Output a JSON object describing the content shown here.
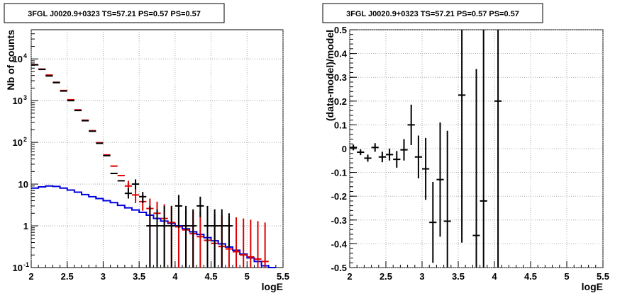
{
  "chart_data": [
    {
      "type": "line",
      "title": "3FGL J0020.9+0323 TS=57.21 PS=0.57 PS=0.57",
      "xlabel": "logE",
      "ylabel": "Nb of counts",
      "xlim": [
        2,
        5.5
      ],
      "ylim": [
        0.1,
        50000
      ],
      "yscale": "log",
      "grid": true,
      "x_ticks": [
        "2",
        "2.5",
        "3",
        "3.5",
        "4",
        "4.5",
        "5",
        "5.5"
      ],
      "y_ticks": [
        {
          "value": 0.1,
          "label": "10",
          "exp": "-1"
        },
        {
          "value": 1,
          "label": "1",
          "exp": ""
        },
        {
          "value": 10,
          "label": "10",
          "exp": ""
        },
        {
          "value": 100,
          "label": "10",
          "exp": "2"
        },
        {
          "value": 1000,
          "label": "10",
          "exp": "3"
        },
        {
          "value": 10000,
          "label": "10",
          "exp": "4"
        }
      ],
      "colors": {
        "data": "#000000",
        "model": "#dd0000",
        "background": "#0000dd"
      },
      "series": [
        {
          "kind": "errorbars",
          "color": "data",
          "x": [
            2.05,
            2.15,
            2.25,
            2.35,
            2.45,
            2.55,
            2.65,
            2.75,
            2.85,
            2.95,
            3.05,
            3.15,
            3.25,
            3.35,
            3.45,
            3.55,
            3.65,
            3.75,
            3.85,
            3.95,
            4.05,
            4.15,
            4.25,
            4.35,
            4.45,
            4.55,
            4.65,
            4.75
          ],
          "y": [
            7200,
            5600,
            3900,
            2700,
            1700,
            1000,
            580,
            330,
            185,
            95,
            48,
            18,
            12,
            6,
            10,
            5,
            1,
            1,
            1,
            1,
            3,
            1,
            1,
            3,
            1,
            1,
            1,
            1
          ],
          "lo": [
            null,
            null,
            null,
            null,
            null,
            null,
            null,
            null,
            null,
            null,
            null,
            null,
            null,
            4.5,
            7.5,
            3.5,
            0.1,
            0.1,
            0.1,
            0.1,
            0.9,
            0.1,
            0.1,
            1.6,
            0.1,
            0.1,
            0.1,
            0.3
          ],
          "hi": [
            null,
            null,
            null,
            null,
            null,
            null,
            null,
            null,
            null,
            null,
            null,
            null,
            null,
            8,
            13,
            6.5,
            3,
            2.5,
            3,
            3,
            5.5,
            3,
            2.5,
            5,
            3,
            2.5,
            2.5,
            2
          ]
        },
        {
          "kind": "errorbars",
          "color": "model",
          "x": [
            2.05,
            2.15,
            2.25,
            2.35,
            2.45,
            2.55,
            2.65,
            2.75,
            2.85,
            2.95,
            3.05,
            3.15,
            3.25,
            3.35,
            3.45,
            3.55,
            3.65,
            3.75,
            3.85,
            3.95,
            4.05,
            4.15,
            4.25,
            4.35,
            4.45,
            4.55,
            4.65,
            4.75,
            4.85,
            4.95,
            5.05,
            5.15,
            5.25
          ],
          "y": [
            7300,
            5700,
            4100,
            2750,
            1750,
            1050,
            600,
            340,
            190,
            98,
            50,
            27,
            16,
            9,
            5.5,
            3.8,
            2.6,
            2.0,
            1.5,
            1.2,
            0.95,
            0.8,
            0.65,
            0.55,
            0.45,
            0.38,
            0.32,
            0.28,
            0.24,
            0.2,
            0.18,
            0.16,
            0.14
          ],
          "lo": [
            null,
            null,
            null,
            null,
            null,
            null,
            null,
            null,
            null,
            null,
            null,
            null,
            null,
            6.5,
            3.5,
            2.3,
            0.1,
            0.1,
            0.1,
            0.1,
            0.1,
            0.1,
            0.1,
            0.1,
            0.1,
            0.1,
            0.1,
            0.1,
            0.1,
            0.1,
            0.1,
            0.1,
            0.1
          ],
          "hi": [
            null,
            null,
            null,
            null,
            null,
            null,
            null,
            null,
            null,
            null,
            null,
            null,
            null,
            12,
            8,
            5.5,
            4.5,
            3.8,
            3.3,
            3.0,
            2.7,
            2.5,
            2.3,
            2.2,
            2.0,
            1.9,
            1.8,
            1.7,
            1.6,
            1.5,
            1.4,
            1.3,
            1.2
          ]
        },
        {
          "kind": "step",
          "color": "background",
          "x": [
            2.0,
            2.1,
            2.2,
            2.3,
            2.4,
            2.5,
            2.6,
            2.7,
            2.8,
            2.9,
            3.0,
            3.1,
            3.2,
            3.3,
            3.4,
            3.5,
            3.6,
            3.7,
            3.8,
            3.9,
            4.0,
            4.1,
            4.2,
            4.3,
            4.4,
            4.5,
            4.6,
            4.7,
            4.8,
            4.9,
            5.0,
            5.1,
            5.2,
            5.3
          ],
          "y": [
            8.0,
            8.6,
            9.0,
            8.8,
            8.0,
            7.2,
            6.4,
            5.6,
            5.0,
            4.5,
            4.0,
            3.6,
            3.1,
            2.7,
            2.4,
            2.1,
            1.8,
            1.5,
            1.3,
            1.15,
            1.0,
            0.85,
            0.72,
            0.62,
            0.52,
            0.44,
            0.37,
            0.31,
            0.26,
            0.21,
            0.17,
            0.14,
            0.11,
            0.1
          ]
        }
      ]
    },
    {
      "type": "scatter",
      "title": "3FGL J0020.9+0323 TS=57.21 PS=0.57 PS=0.57",
      "xlabel": "logE",
      "ylabel": "(data-model)/model",
      "xlim": [
        2,
        5.5
      ],
      "ylim": [
        -0.5,
        0.5
      ],
      "grid": true,
      "x_ticks": [
        "2",
        "2.5",
        "3",
        "3.5",
        "4",
        "4.5",
        "5",
        "5.5"
      ],
      "y_ticks": [
        "-0.5",
        "-0.4",
        "-0.3",
        "-0.2",
        "-0.1",
        "0",
        "0.1",
        "0.2",
        "0.3",
        "0.4",
        "0.5"
      ],
      "y_tick_values": [
        -0.5,
        -0.4,
        -0.3,
        -0.2,
        -0.1,
        0,
        0.1,
        0.2,
        0.3,
        0.4,
        0.5
      ],
      "series": [
        {
          "kind": "errorbars",
          "x": [
            2.05,
            2.15,
            2.25,
            2.35,
            2.45,
            2.55,
            2.65,
            2.75,
            2.85,
            2.95,
            3.05,
            3.15,
            3.25,
            3.35,
            3.55,
            3.75,
            3.85,
            4.05
          ],
          "y": [
            0.005,
            -0.015,
            -0.04,
            0.005,
            -0.035,
            -0.025,
            -0.045,
            -0.005,
            0.1,
            -0.035,
            -0.085,
            -0.31,
            -0.13,
            -0.305,
            0.225,
            -0.365,
            -0.22,
            0.2
          ],
          "err": [
            0.012,
            0.012,
            0.015,
            0.018,
            0.022,
            0.025,
            0.035,
            0.045,
            0.085,
            0.09,
            0.13,
            0.17,
            0.24,
            0.38,
            0.62,
            0.7,
            0.75,
            0.9
          ]
        }
      ]
    }
  ]
}
